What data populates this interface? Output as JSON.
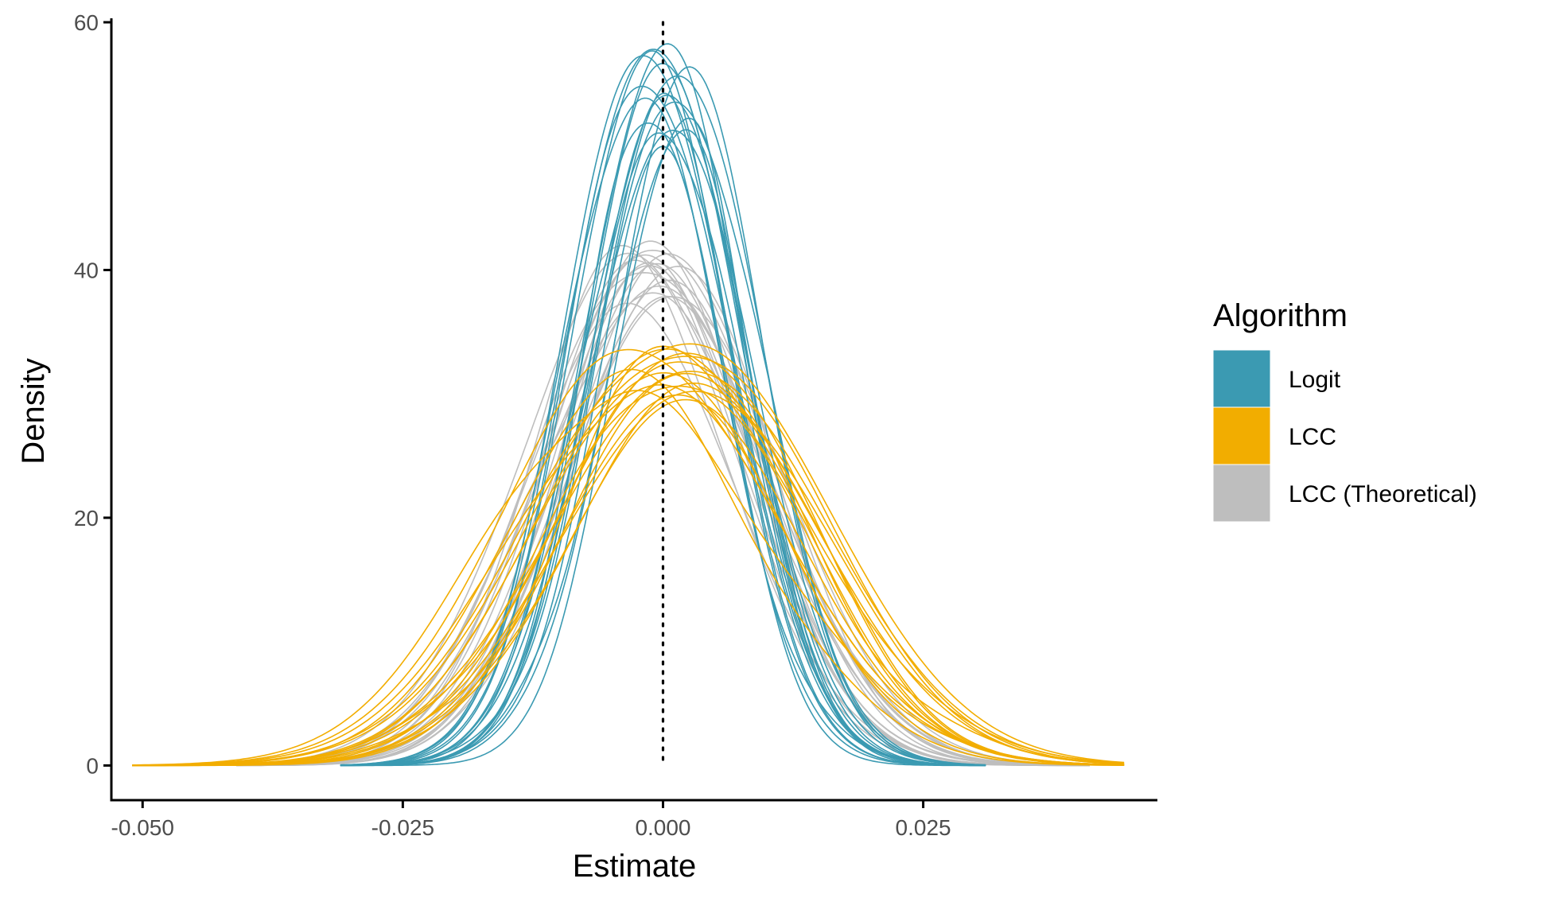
{
  "chart_data": {
    "type": "line",
    "xlabel": "Estimate",
    "ylabel": "Density",
    "xlim": [
      -0.053,
      0.0475
    ],
    "ylim": [
      -2.8,
      60
    ],
    "x_ticks": [
      -0.05,
      -0.025,
      0.0,
      0.025
    ],
    "x_tick_labels": [
      "-0.050",
      "-0.025",
      "0.000",
      "0.025"
    ],
    "y_ticks": [
      0,
      20,
      40,
      60
    ],
    "y_tick_labels": [
      "0",
      "20",
      "40",
      "60"
    ],
    "reference_line": {
      "x": 0.0,
      "style": "dotted"
    },
    "grid": false,
    "legend": {
      "title": "Algorithm",
      "position": "right",
      "entries": [
        {
          "label": "Logit",
          "color": "#3b9ab2"
        },
        {
          "label": "LCC",
          "color": "#f2ad00"
        },
        {
          "label": "LCC (Theoretical)",
          "color": "#bebebe"
        }
      ]
    },
    "series": [
      {
        "group": "LCC (Theoretical)",
        "color": "#bebebe",
        "mean": -0.001,
        "sd": 0.0102,
        "peak": 39.5,
        "count": 18,
        "xmin": -0.041,
        "xmax": 0.041
      },
      {
        "group": "Logit",
        "color": "#3b9ab2",
        "mean": 0.0003,
        "sd": 0.0074,
        "peak": 54.0,
        "count": 18,
        "xmin": -0.031,
        "xmax": 0.031
      },
      {
        "group": "LCC",
        "color": "#f2ad00",
        "mean": 0.0,
        "sd": 0.0123,
        "peak": 31.8,
        "count": 18,
        "xmin": -0.051,
        "xmax": 0.0443
      }
    ]
  }
}
